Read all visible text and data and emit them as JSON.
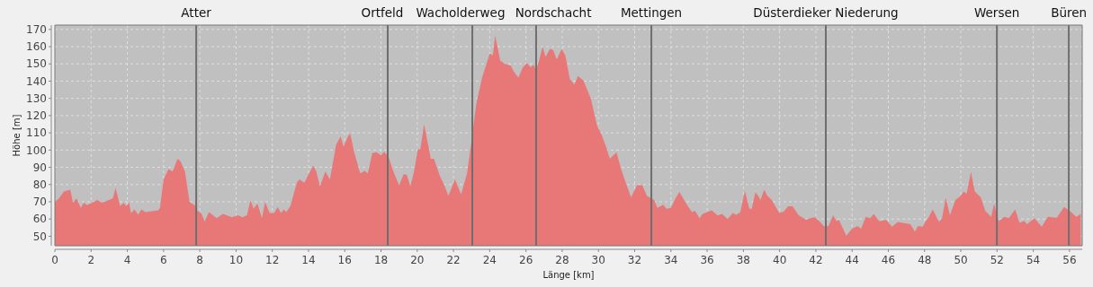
{
  "chart_data": {
    "type": "area",
    "xlabel": "Länge [km]",
    "ylabel": "Höhe [m]",
    "grid": true,
    "xlim": [
      0,
      56.7
    ],
    "ylim": [
      44.5,
      172.5
    ],
    "xticks": [
      0,
      2,
      4,
      6,
      8,
      10,
      12,
      14,
      16,
      18,
      20,
      22,
      24,
      26,
      28,
      30,
      32,
      34,
      36,
      38,
      40,
      42,
      44,
      46,
      48,
      50,
      52,
      54,
      56
    ],
    "yticks": [
      50,
      60,
      70,
      80,
      90,
      100,
      110,
      120,
      130,
      140,
      150,
      160,
      170
    ],
    "ref_lines": [
      {
        "axis": "x",
        "value": 7.8,
        "label": "Atter",
        "color": "#6e6e6e"
      },
      {
        "axis": "x",
        "value": 18.37,
        "label": "Ortfeld",
        "color": "#6e6e6e"
      },
      {
        "axis": "x",
        "value": 23.04,
        "label": "Wacholderweg",
        "color": "#6e6e6e"
      },
      {
        "axis": "x",
        "value": 26.56,
        "label": "Nordschacht",
        "color": "#6e6e6e"
      },
      {
        "axis": "x",
        "value": 32.92,
        "label": "Mettingen",
        "color": "#6e6e6e"
      },
      {
        "axis": "x",
        "value": 42.55,
        "label": "Düsterdieker Niederung",
        "color": "#6e6e6e"
      },
      {
        "axis": "x",
        "value": 51.99,
        "label": "Wersen",
        "color": "#6e6e6e"
      },
      {
        "axis": "x",
        "value": 55.96,
        "label": "Büren",
        "color": "#6e6e6e"
      }
    ],
    "series": [
      {
        "color": "#e87878",
        "x": [
          0,
          0.2,
          0.5,
          0.85,
          1.0,
          1.2,
          1.43,
          1.6,
          1.77,
          2.35,
          2.6,
          3.2,
          3.35,
          3.6,
          3.8,
          3.93,
          4.1,
          4.2,
          4.4,
          4.6,
          4.77,
          5.0,
          5.7,
          5.8,
          6.0,
          6.27,
          6.5,
          6.77,
          6.93,
          7.18,
          7.43,
          7.77,
          7.85,
          8.1,
          8.27,
          8.5,
          8.93,
          9.27,
          9.77,
          10.1,
          10.35,
          10.6,
          10.8,
          10.97,
          11.18,
          11.43,
          11.6,
          11.85,
          12.1,
          12.3,
          12.47,
          12.65,
          12.77,
          13.0,
          13.35,
          13.5,
          13.77,
          14.1,
          14.27,
          14.43,
          14.63,
          14.93,
          15.18,
          15.52,
          15.77,
          15.93,
          16.18,
          16.3,
          16.52,
          16.85,
          17.1,
          17.27,
          17.52,
          17.75,
          18.0,
          18.17,
          18.42,
          18.67,
          19.0,
          19.25,
          19.42,
          19.62,
          19.83,
          20.03,
          20.17,
          20.38,
          20.75,
          20.92,
          21.25,
          21.5,
          21.72,
          22.08,
          22.42,
          22.75,
          23.0,
          23.25,
          23.58,
          24.0,
          24.17,
          24.3,
          24.58,
          24.83,
          25.17,
          25.33,
          25.58,
          25.83,
          26.05,
          26.25,
          26.42,
          26.55,
          26.7,
          26.92,
          27.08,
          27.33,
          27.5,
          27.7,
          27.97,
          28.17,
          28.42,
          28.67,
          28.87,
          29.17,
          29.58,
          29.92,
          30.17,
          30.42,
          30.63,
          31.0,
          31.25,
          31.5,
          31.8,
          32.13,
          32.42,
          32.67,
          33.08,
          33.25,
          33.58,
          33.75,
          34.0,
          34.25,
          34.47,
          34.92,
          35.17,
          35.33,
          35.58,
          35.75,
          36.25,
          36.58,
          36.83,
          37.13,
          37.42,
          37.6,
          37.83,
          38.08,
          38.33,
          38.46,
          38.66,
          38.82,
          38.94,
          39.15,
          39.32,
          39.57,
          39.98,
          40.22,
          40.47,
          40.72,
          41.05,
          41.46,
          41.7,
          41.95,
          42.2,
          42.45,
          42.7,
          42.95,
          43.15,
          43.27,
          43.68,
          44.0,
          44.3,
          44.5,
          44.75,
          45.0,
          45.2,
          45.5,
          45.66,
          45.87,
          46.2,
          46.53,
          46.8,
          47.22,
          47.47,
          47.64,
          47.9,
          48.05,
          48.2,
          48.45,
          48.8,
          48.96,
          49.17,
          49.4,
          49.7,
          50.0,
          50.16,
          50.32,
          50.56,
          50.77,
          51.1,
          51.35,
          51.67,
          51.84,
          52.08,
          52.4,
          52.65,
          53.0,
          53.24,
          53.5,
          53.65,
          54.06,
          54.47,
          54.8,
          55.3,
          55.7,
          56.12,
          56.37,
          56.62
        ],
        "values": [
          70,
          71.7,
          76,
          77,
          69.5,
          72,
          66.5,
          69.5,
          68,
          71,
          69.5,
          72,
          78,
          67.5,
          69.5,
          67.5,
          69.5,
          63.4,
          65.6,
          62.5,
          65.6,
          64,
          65,
          66.5,
          83,
          89,
          87.5,
          95,
          93.5,
          87.5,
          70,
          67.5,
          65,
          63,
          58.5,
          64,
          60.5,
          63,
          61,
          62.2,
          61,
          62.2,
          71,
          66,
          69,
          60.5,
          70,
          63.5,
          63.5,
          67,
          63.5,
          65.6,
          64,
          67.5,
          81,
          83,
          81,
          88,
          91,
          87.5,
          79,
          87.5,
          83,
          103,
          108,
          102,
          108,
          109.5,
          98.7,
          86.5,
          88,
          86.5,
          98.3,
          98.7,
          97,
          99,
          96,
          88,
          79.5,
          86,
          85.6,
          79,
          88,
          100.4,
          100.4,
          115,
          95,
          95,
          85,
          79.5,
          73.5,
          83,
          74.3,
          86.5,
          105.7,
          126.5,
          142,
          156,
          155,
          166.5,
          152,
          150,
          149,
          145.6,
          142,
          148,
          150.5,
          148,
          149.5,
          146.5,
          151,
          160,
          154,
          158.7,
          158,
          152.6,
          158.7,
          155,
          141.3,
          138,
          143,
          140.4,
          130,
          114.3,
          109,
          102,
          95,
          98.7,
          89,
          81.3,
          72.6,
          79.6,
          79.6,
          73.5,
          71,
          66.5,
          68.3,
          66,
          66.5,
          72,
          75.7,
          67.6,
          64,
          64.8,
          60.5,
          63,
          65,
          62,
          63,
          60,
          63.5,
          62.5,
          64,
          76.4,
          66,
          66,
          75.5,
          73.5,
          71,
          77,
          73.5,
          71,
          63.5,
          64.3,
          67.4,
          67.4,
          62.2,
          59.6,
          60.5,
          61,
          58.7,
          55.8,
          56,
          62.2,
          58.7,
          59.6,
          50.4,
          54.4,
          56,
          54.4,
          61.3,
          60.5,
          63,
          58.7,
          59,
          59.6,
          55.6,
          58.3,
          57.8,
          57,
          52.6,
          56,
          55.5,
          58.7,
          60.5,
          65.6,
          58.3,
          60.5,
          72.3,
          62.2,
          71,
          73.5,
          76,
          74.7,
          87.4,
          76,
          72.6,
          64.8,
          61.3,
          68.8,
          58.7,
          61.3,
          60.5,
          65.6,
          57.8,
          59,
          57,
          60.5,
          55.6,
          61.3,
          60.8,
          67,
          63.8,
          61.3,
          63
        ]
      }
    ]
  }
}
